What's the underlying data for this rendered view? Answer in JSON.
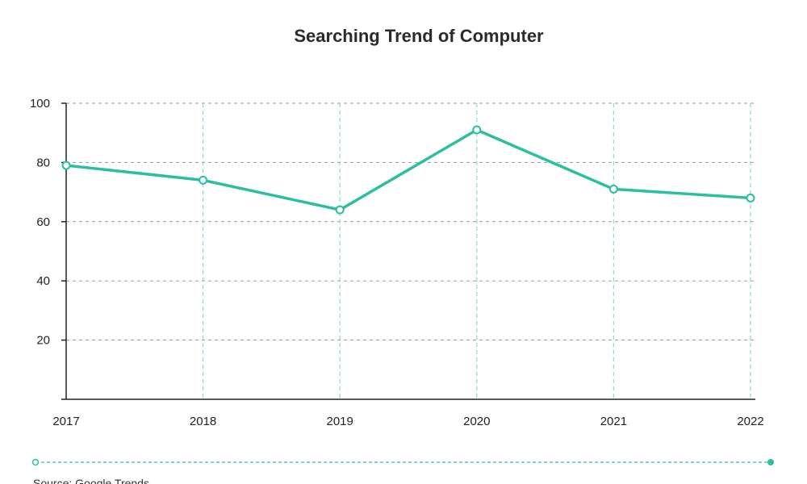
{
  "chart_data": {
    "type": "line",
    "title": "Searching Trend of Computer",
    "xlabel": "",
    "ylabel": "",
    "x": [
      "2017",
      "2018",
      "2019",
      "2020",
      "2021",
      "2022"
    ],
    "series": [
      {
        "values": [
          79,
          74,
          64,
          91,
          71,
          68
        ]
      }
    ],
    "ylim": [
      0,
      100
    ],
    "yticks": [
      20,
      40,
      60,
      80,
      100
    ],
    "grid": true,
    "legend": "none",
    "colors": {
      "line": "#2bbfa0",
      "vertical_grid": "#8fd9c7",
      "horizontal_grid": "#9a9a9a",
      "axis": "#222222"
    }
  },
  "footer": {
    "source": "Source: Google Trends"
  }
}
